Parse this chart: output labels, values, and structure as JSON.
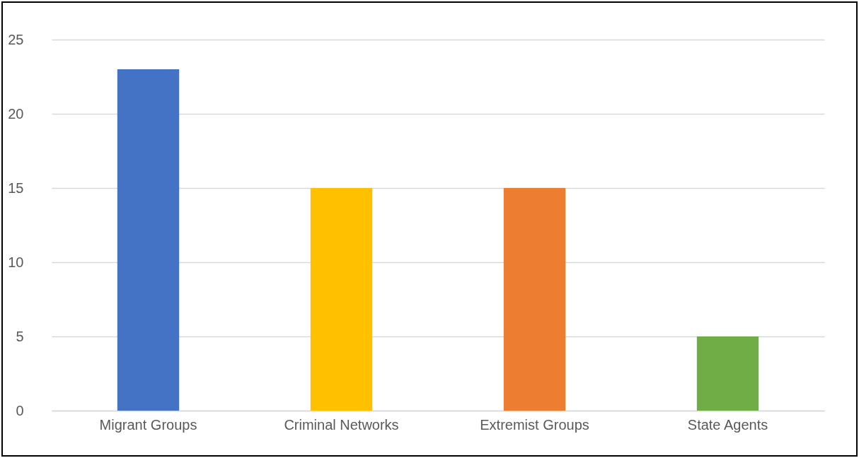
{
  "chart_data": {
    "type": "bar",
    "categories": [
      "Migrant Groups",
      "Criminal Networks",
      "Extremist Groups",
      "State Agents"
    ],
    "values": [
      23,
      15,
      15,
      5
    ],
    "colors": [
      "#4472c4",
      "#ffc000",
      "#ed7d31",
      "#70ad47"
    ],
    "ylim": [
      0,
      25
    ],
    "yticks": [
      0,
      5,
      10,
      15,
      20,
      25
    ],
    "grid": "y"
  }
}
